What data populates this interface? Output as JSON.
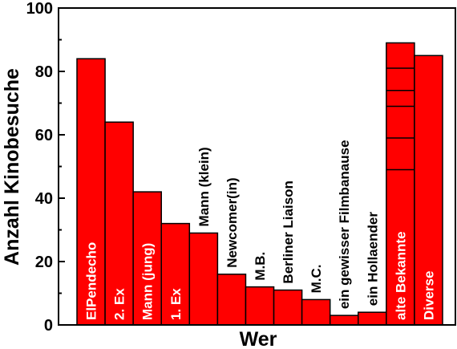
{
  "chart_data": {
    "type": "bar",
    "xlabel": "Wer",
    "ylabel": "Anzahl Kinobesuche",
    "ylim": [
      0,
      100
    ],
    "yticks": [
      0,
      20,
      40,
      60,
      80,
      100
    ],
    "grid": false,
    "legend": "none",
    "bar_color": "#ff0000",
    "categories": [
      "ElPendecho",
      "2. Ex",
      "Mann (jung)",
      "1. Ex",
      "Mann (klein)",
      "Newcomer(in)",
      "M.B.",
      "Berliner Liaison",
      "M.C.",
      "ein gewisser Filmbanause",
      "ein Hollaender",
      "alte Bekannte",
      "Diverse"
    ],
    "values": [
      84,
      64,
      42,
      32,
      29,
      16,
      12,
      11,
      8,
      3,
      4,
      89,
      85
    ],
    "stacked_segments": {
      "alte Bekannte": [
        49,
        59,
        69,
        74,
        81
      ]
    }
  }
}
